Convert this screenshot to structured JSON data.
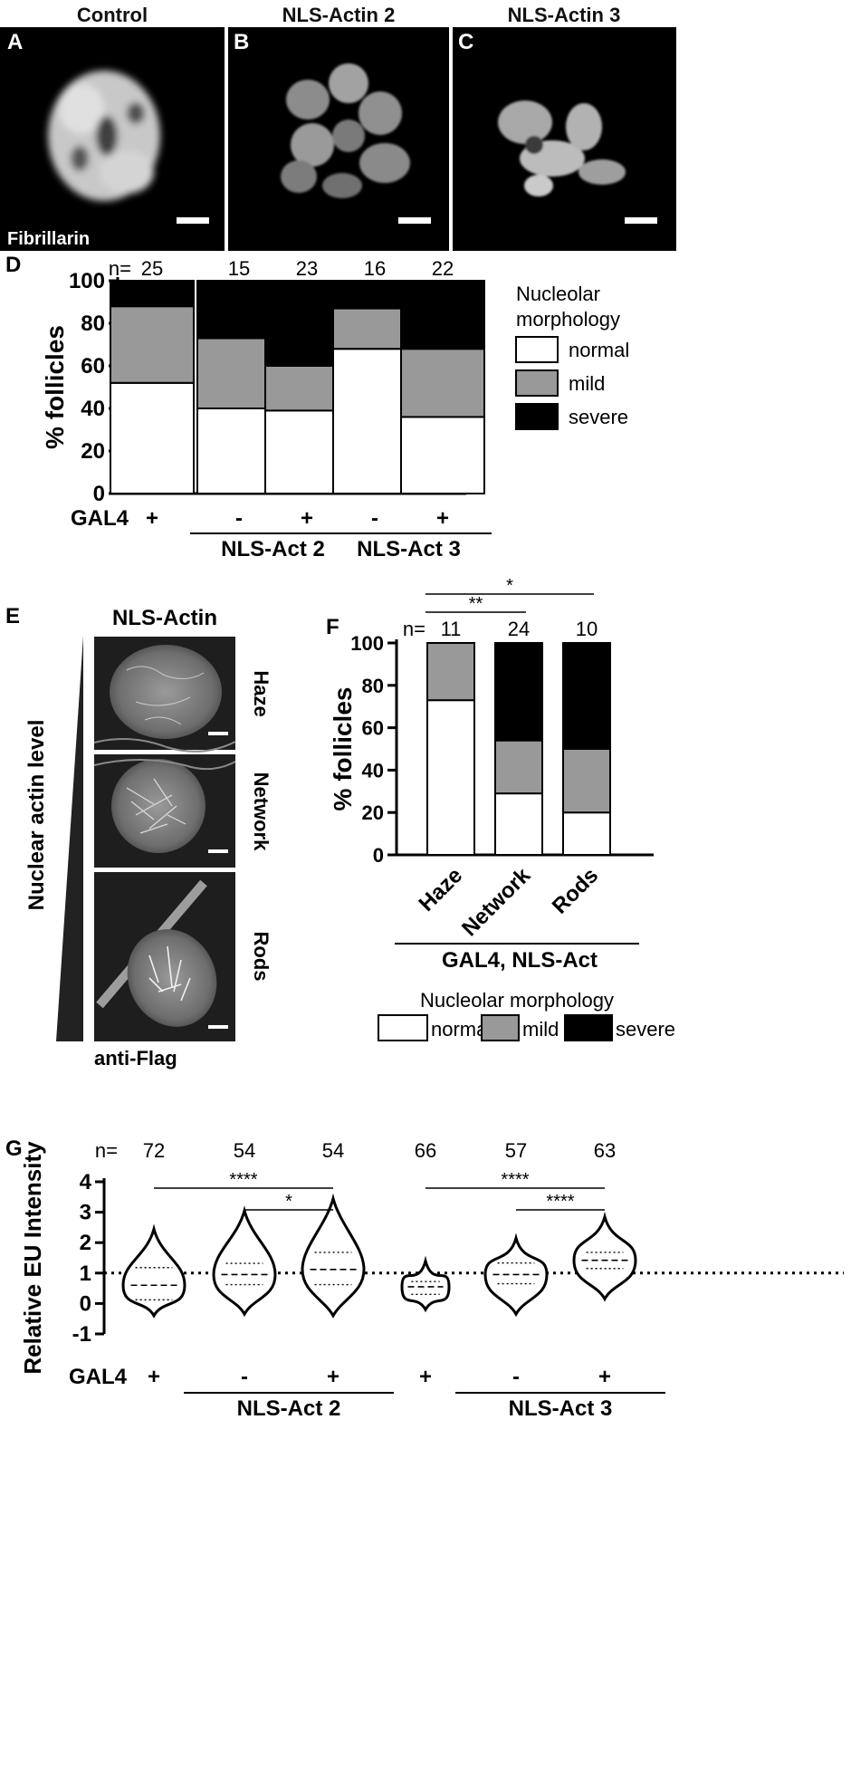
{
  "micrographs_top": {
    "panels": [
      {
        "letter": "A",
        "title": "Control",
        "stain": "Fibrillarin"
      },
      {
        "letter": "B",
        "title": "NLS-Actin 2",
        "stain": ""
      },
      {
        "letter": "C",
        "title": "NLS-Actin 3",
        "stain": ""
      }
    ]
  },
  "chart_data": [
    {
      "panel": "D",
      "type": "bar",
      "stacked": true,
      "ylabel": "% follicles",
      "ylim": [
        0,
        100
      ],
      "yticks": [
        0,
        20,
        40,
        60,
        80,
        100
      ],
      "n_prefix": "n=",
      "n": [
        "25",
        "15",
        "23",
        "16",
        "22"
      ],
      "categories": [
        "+",
        "-",
        "+",
        "-",
        "+"
      ],
      "row_label": "GAL4",
      "group_labels": [
        {
          "label": "NLS-Act 2",
          "from": 1,
          "to": 2
        },
        {
          "label": "NLS-Act 3",
          "from": 3,
          "to": 4
        }
      ],
      "legend": {
        "title_line1": "Nucleolar",
        "title_line2": "morphology",
        "placement": "right"
      },
      "series": [
        {
          "name": "normal",
          "color": "#ffffff",
          "values": [
            52,
            40,
            39,
            68,
            36
          ]
        },
        {
          "name": "mild",
          "color": "#999999",
          "values": [
            36,
            33,
            21,
            19,
            32
          ]
        },
        {
          "name": "severe",
          "color": "#000000",
          "values": [
            12,
            27,
            40,
            13,
            32
          ]
        }
      ]
    },
    {
      "panel": "F",
      "type": "bar",
      "stacked": true,
      "ylabel": "% follicles",
      "ylim": [
        0,
        100
      ],
      "yticks": [
        0,
        20,
        40,
        60,
        80,
        100
      ],
      "n_prefix": "n=",
      "n": [
        "11",
        "24",
        "10"
      ],
      "categories": [
        "Haze",
        "Network",
        "Rods"
      ],
      "group_label": "GAL4, NLS-Act",
      "significance": [
        {
          "from": 0,
          "to": 1,
          "label": "**"
        },
        {
          "from": 0,
          "to": 2,
          "label": "*"
        }
      ],
      "legend": {
        "title": "Nucleolar morphology",
        "placement": "bottom"
      },
      "series": [
        {
          "name": "normal",
          "color": "#ffffff",
          "values": [
            73,
            29,
            20
          ]
        },
        {
          "name": "mild",
          "color": "#999999",
          "values": [
            27,
            25,
            30
          ]
        },
        {
          "name": "severe",
          "color": "#000000",
          "values": [
            0,
            46,
            50
          ]
        }
      ]
    },
    {
      "panel": "G",
      "type": "violin",
      "ylabel": "Relative EU Intensity",
      "ylim": [
        -1,
        4
      ],
      "yticks": [
        -1,
        0,
        1,
        2,
        3,
        4
      ],
      "reference_line": 1,
      "n_prefix": "n=",
      "n": [
        "72",
        "54",
        "54",
        "66",
        "57",
        "63"
      ],
      "categories": [
        "+",
        "-",
        "+",
        "+",
        "-",
        "+"
      ],
      "row_label": "GAL4",
      "group_labels": [
        {
          "label": "NLS-Act 2",
          "from": 1,
          "to": 2
        },
        {
          "label": "NLS-Act 3",
          "from": 4,
          "to": 5
        }
      ],
      "significance": [
        {
          "from": 0,
          "to": 2,
          "label": "****"
        },
        {
          "from": 1,
          "to": 2,
          "label": "*"
        },
        {
          "from": 3,
          "to": 5,
          "label": "****"
        },
        {
          "from": 4,
          "to": 5,
          "label": "****"
        }
      ],
      "violins": [
        {
          "min": -0.4,
          "max": 2.45,
          "q1": 0.12,
          "median": 0.6,
          "q3": 1.18
        },
        {
          "min": -0.35,
          "max": 3.05,
          "q1": 0.62,
          "median": 0.95,
          "q3": 1.32
        },
        {
          "min": -0.4,
          "max": 3.45,
          "q1": 0.62,
          "median": 1.12,
          "q3": 1.68
        },
        {
          "min": -0.2,
          "max": 1.4,
          "q1": 0.3,
          "median": 0.55,
          "q3": 0.72
        },
        {
          "min": -0.35,
          "max": 2.15,
          "q1": 0.65,
          "median": 0.95,
          "q3": 1.33
        },
        {
          "min": 0.15,
          "max": 2.85,
          "q1": 1.15,
          "median": 1.42,
          "q3": 1.68
        }
      ]
    }
  ],
  "panel_e": {
    "letter": "E",
    "title": "NLS-Actin",
    "side_label": "Nuclear actin level",
    "stain": "anti-Flag",
    "rows": [
      "Haze",
      "Network",
      "Rods"
    ]
  },
  "panel_letters": {
    "d": "D",
    "f": "F",
    "g": "G"
  }
}
